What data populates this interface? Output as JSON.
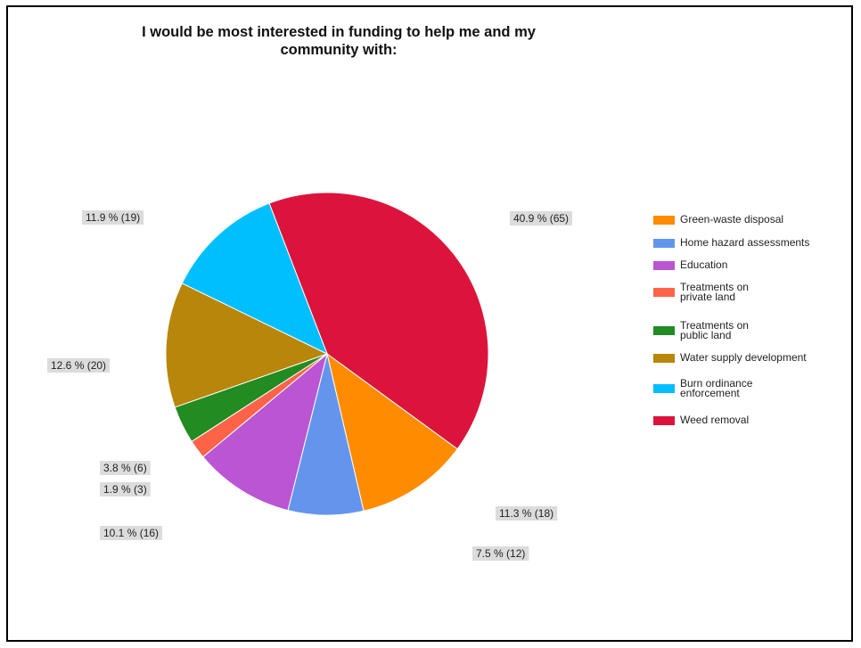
{
  "chart_data": {
    "type": "pie",
    "title_lines": [
      "I would be most interested in funding to help me and my",
      "community with:"
    ],
    "title": "I would be most interested in funding to help me and my community with:",
    "legend_position": "right",
    "slices": [
      {
        "name": "Weed removal",
        "value": 65,
        "label": "40.9 % (65)",
        "color": "#dc143c"
      },
      {
        "name": "Green-waste disposal",
        "value": 18,
        "label": "11.3 % (18)",
        "color": "#ff8c00"
      },
      {
        "name": "Home hazard assessments",
        "value": 12,
        "label": "7.5 % (12)",
        "color": "#6495ed"
      },
      {
        "name": "Education",
        "value": 16,
        "label": "10.1 % (16)",
        "color": "#ba55d3"
      },
      {
        "name": "Treatments on\nprivate land",
        "value": 3,
        "label": "1.9 % (3)",
        "color": "#ff6347"
      },
      {
        "name": "Treatments on\npublic land",
        "value": 6,
        "label": "3.8 % (6)",
        "color": "#228b22"
      },
      {
        "name": "Water supply development",
        "value": 20,
        "label": "12.6 % (20)",
        "color": "#b8860b"
      },
      {
        "name": "Burn ordinance\nenforcement",
        "value": 19,
        "label": "11.9 % (19)",
        "color": "#00bfff"
      }
    ],
    "legend_order": [
      "Green-waste disposal",
      "Home hazard assessments",
      "Education",
      "Treatments on\nprivate land",
      "Treatments on\npublic land",
      "Water supply development",
      "Burn ordinance\nenforcement",
      "Weed removal"
    ]
  }
}
